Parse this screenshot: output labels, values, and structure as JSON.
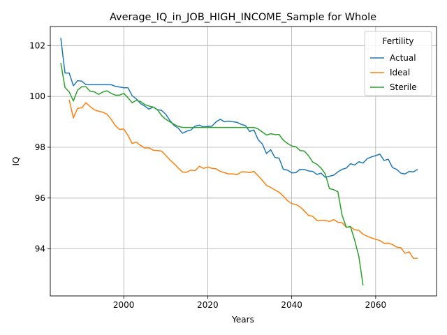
{
  "chart_data": {
    "type": "line",
    "title": "Average_IQ_in_JOB_HIGH_INCOME_Sample for Whole",
    "xlabel": "Years",
    "ylabel": "IQ",
    "xlim": [
      1982.5,
      2074.5
    ],
    "ylim": [
      92.15,
      102.75
    ],
    "xticks": [
      2000,
      2020,
      2040,
      2060
    ],
    "yticks": [
      94,
      96,
      98,
      100,
      102
    ],
    "grid": true,
    "legend": {
      "title": "Fertility",
      "position": "top-right"
    },
    "series": [
      {
        "name": "Actual",
        "color": "#1f77b4",
        "x": [
          1985,
          1986,
          1987,
          1988,
          1989,
          1990,
          1991,
          1992,
          1993,
          1994,
          1995,
          1996,
          1997,
          1998,
          1999,
          2000,
          2001,
          2002,
          2003,
          2004,
          2005,
          2006,
          2007,
          2008,
          2009,
          2010,
          2011,
          2012,
          2013,
          2014,
          2015,
          2016,
          2017,
          2018,
          2019,
          2020,
          2021,
          2022,
          2023,
          2024,
          2025,
          2026,
          2027,
          2028,
          2029,
          2030,
          2031,
          2032,
          2033,
          2034,
          2035,
          2036,
          2037,
          2038,
          2039,
          2040,
          2041,
          2042,
          2043,
          2044,
          2045,
          2046,
          2047,
          2048,
          2049,
          2050,
          2051,
          2052,
          2053,
          2054,
          2055,
          2056,
          2057,
          2058,
          2059,
          2060,
          2061,
          2062,
          2063,
          2064,
          2065,
          2066,
          2067,
          2068,
          2069,
          2070
        ],
        "y": [
          102.3,
          100.92,
          100.92,
          100.42,
          100.62,
          100.6,
          100.46,
          100.46,
          100.46,
          100.46,
          100.46,
          100.46,
          100.46,
          100.4,
          100.37,
          100.34,
          100.34,
          100.03,
          99.9,
          99.72,
          99.62,
          99.5,
          99.58,
          99.48,
          99.45,
          99.3,
          99.05,
          98.85,
          98.75,
          98.55,
          98.63,
          98.68,
          98.83,
          98.87,
          98.8,
          98.82,
          98.83,
          99.0,
          99.1,
          99.0,
          99.03,
          99.0,
          98.98,
          98.9,
          98.85,
          98.62,
          98.68,
          98.3,
          98.13,
          97.75,
          97.9,
          97.6,
          97.57,
          97.13,
          97.1,
          96.99,
          97.0,
          97.13,
          97.12,
          97.07,
          97.05,
          96.93,
          96.98,
          96.82,
          96.86,
          96.9,
          97.03,
          97.13,
          97.18,
          97.35,
          97.3,
          97.43,
          97.38,
          97.55,
          97.62,
          97.67,
          97.73,
          97.48,
          97.53,
          97.2,
          97.13,
          96.98,
          96.95,
          97.05,
          97.03,
          97.13
        ]
      },
      {
        "name": "Ideal",
        "color": "#ff7f0e",
        "x": [
          1987,
          1988,
          1989,
          1990,
          1991,
          1992,
          1993,
          1994,
          1995,
          1996,
          1997,
          1998,
          1999,
          2000,
          2001,
          2002,
          2003,
          2004,
          2005,
          2006,
          2007,
          2008,
          2009,
          2010,
          2011,
          2012,
          2013,
          2014,
          2015,
          2016,
          2017,
          2018,
          2019,
          2020,
          2021,
          2022,
          2023,
          2024,
          2025,
          2026,
          2027,
          2028,
          2029,
          2030,
          2031,
          2032,
          2033,
          2034,
          2035,
          2036,
          2037,
          2038,
          2039,
          2040,
          2041,
          2042,
          2043,
          2044,
          2045,
          2046,
          2047,
          2048,
          2049,
          2050,
          2051,
          2052,
          2053,
          2054,
          2055,
          2056,
          2057,
          2058,
          2059,
          2060,
          2061,
          2062,
          2063,
          2064,
          2065,
          2066,
          2067,
          2068,
          2069,
          2070
        ],
        "y": [
          99.87,
          99.15,
          99.53,
          99.55,
          99.75,
          99.6,
          99.47,
          99.42,
          99.38,
          99.3,
          99.1,
          98.85,
          98.7,
          98.72,
          98.47,
          98.15,
          98.2,
          98.07,
          97.97,
          97.98,
          97.88,
          97.87,
          97.85,
          97.68,
          97.5,
          97.35,
          97.18,
          97.02,
          97.02,
          97.1,
          97.08,
          97.25,
          97.17,
          97.22,
          97.17,
          97.15,
          97.05,
          97.0,
          96.95,
          96.95,
          96.92,
          97.03,
          97.03,
          97.0,
          97.05,
          96.88,
          96.7,
          96.5,
          96.42,
          96.32,
          96.23,
          96.08,
          95.9,
          95.78,
          95.75,
          95.65,
          95.5,
          95.32,
          95.28,
          95.12,
          95.12,
          95.12,
          95.08,
          95.15,
          95.05,
          95.03,
          94.85,
          94.87,
          94.75,
          94.73,
          94.58,
          94.5,
          94.43,
          94.38,
          94.33,
          94.22,
          94.23,
          94.17,
          94.07,
          94.05,
          93.83,
          93.88,
          93.63,
          93.63
        ]
      },
      {
        "name": "Sterile",
        "color": "#2ca02c",
        "x": [
          1985,
          1986,
          1987,
          1988,
          1989,
          1990,
          1991,
          1992,
          1993,
          1994,
          1995,
          1996,
          1997,
          1998,
          1999,
          2000,
          2001,
          2002,
          2003,
          2004,
          2005,
          2006,
          2007,
          2008,
          2009,
          2010,
          2011,
          2012,
          2013,
          2014,
          2015,
          2016,
          2017,
          2018,
          2019,
          2020,
          2021,
          2022,
          2023,
          2024,
          2025,
          2026,
          2027,
          2028,
          2029,
          2030,
          2031,
          2032,
          2033,
          2034,
          2035,
          2036,
          2037,
          2038,
          2039,
          2040,
          2041,
          2042,
          2043,
          2044,
          2045,
          2046,
          2047,
          2048,
          2049,
          2050,
          2051,
          2052,
          2053,
          2054,
          2055,
          2056,
          2057
        ],
        "y": [
          101.32,
          100.35,
          100.18,
          99.82,
          100.25,
          100.38,
          100.38,
          100.2,
          100.18,
          100.08,
          100.17,
          100.22,
          100.12,
          100.05,
          100.05,
          100.12,
          99.95,
          99.75,
          99.85,
          99.8,
          99.68,
          99.62,
          99.58,
          99.48,
          99.25,
          99.1,
          99.0,
          98.9,
          98.82,
          98.78,
          98.78,
          98.78,
          98.78,
          98.78,
          98.78,
          98.78,
          98.78,
          98.78,
          98.78,
          98.78,
          98.78,
          98.78,
          98.78,
          98.78,
          98.78,
          98.78,
          98.78,
          98.72,
          98.6,
          98.48,
          98.53,
          98.5,
          98.5,
          98.28,
          98.15,
          98.05,
          98.02,
          97.87,
          97.85,
          97.67,
          97.42,
          97.33,
          97.18,
          96.95,
          96.37,
          96.33,
          96.25,
          95.33,
          94.85,
          94.88,
          94.35,
          93.7,
          92.57
        ]
      }
    ]
  }
}
